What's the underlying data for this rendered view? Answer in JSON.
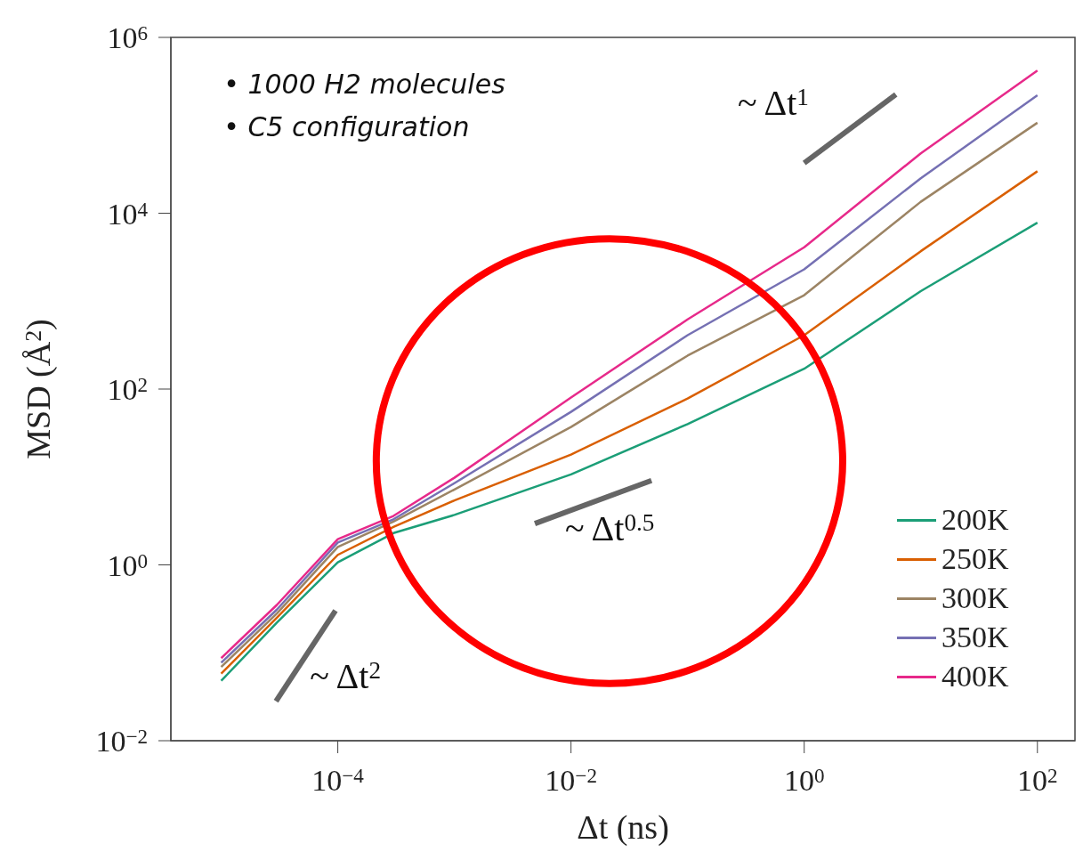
{
  "chart_data": {
    "type": "line",
    "xlabel": "Δt (ns)",
    "ylabel": "MSD (Å$^{2}$)",
    "log": "xy",
    "xlim": [
      3.7e-06,
      210
    ],
    "ylim": [
      0.01,
      1000000
    ],
    "xticks": [
      {
        "value": 0.0001,
        "label": "10$^{−4}$"
      },
      {
        "value": 0.01,
        "label": "10$^{−2}$"
      },
      {
        "value": 1,
        "label": "10$^{0}$"
      },
      {
        "value": 100,
        "label": "10$^{2}$"
      }
    ],
    "yticks": [
      {
        "value": 0.01,
        "label": "10$^{−2}$"
      },
      {
        "value": 1,
        "label": "10$^{0}$"
      },
      {
        "value": 100,
        "label": "10$^{2}$"
      },
      {
        "value": 10000,
        "label": "10$^{4}$"
      },
      {
        "value": 1000000,
        "label": "10$^{6}$"
      }
    ],
    "x": [
      1e-05,
      3e-05,
      0.0001,
      0.0003,
      0.001,
      0.01,
      0.1,
      1,
      10,
      100
    ],
    "series": [
      {
        "name": "200K",
        "color": "#1b9e77",
        "values": [
          0.048,
          0.22,
          1.07,
          2.3,
          3.7,
          10.7,
          40,
          170,
          1300,
          7800
        ]
      },
      {
        "name": "250K",
        "color": "#d95f02",
        "values": [
          0.058,
          0.25,
          1.3,
          2.7,
          5.4,
          18,
          78,
          410,
          3700,
          30000
        ]
      },
      {
        "name": "300K",
        "color": "#9c8464",
        "values": [
          0.069,
          0.28,
          1.6,
          3.1,
          7.2,
          37,
          240,
          1170,
          13500,
          107000
        ]
      },
      {
        "name": "350K",
        "color": "#7570b3",
        "values": [
          0.077,
          0.31,
          1.8,
          3.3,
          8.5,
          55,
          410,
          2300,
          25000,
          220000
        ]
      },
      {
        "name": "400K",
        "color": "#e7298a",
        "values": [
          0.087,
          0.35,
          1.96,
          3.6,
          9.8,
          80,
          620,
          4100,
          48000,
          420000
        ]
      }
    ],
    "legend": "bottom right",
    "grid": false,
    "marker": "none",
    "line_style": "solid",
    "annotations": [
      "• 1000 H2 molecules",
      "• C5 configuration",
      "~ Δt$^{1}$",
      "~ Δt$^{0.5}$",
      "~ Δt$^{2}$"
    ]
  }
}
